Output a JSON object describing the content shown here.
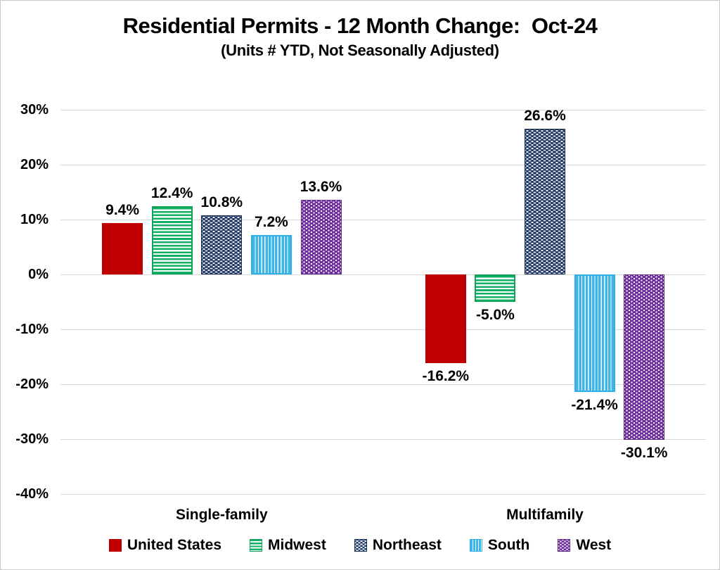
{
  "title": "Residential Permits - 12 Month Change:  Oct-24",
  "subtitle": "(Units # YTD, Not Seasonally Adjusted)",
  "chart_data": {
    "type": "bar",
    "categories": [
      "Single-family",
      "Multifamily"
    ],
    "series": [
      {
        "name": "United States",
        "values": [
          9.4,
          -16.2
        ],
        "labels": [
          "9.4%",
          "-16.2%"
        ],
        "color": "#C00000",
        "pattern": "solid"
      },
      {
        "name": "Midwest",
        "values": [
          12.4,
          -5.0
        ],
        "labels": [
          "12.4%",
          "-5.0%"
        ],
        "color": "#12B266",
        "pattern": "hstripe"
      },
      {
        "name": "Northeast",
        "values": [
          10.8,
          26.6
        ],
        "labels": [
          "10.8%",
          "26.6%"
        ],
        "color": "#1F3864",
        "pattern": "dash"
      },
      {
        "name": "South",
        "values": [
          7.2,
          -21.4
        ],
        "labels": [
          "7.2%",
          "-21.4%"
        ],
        "color": "#3CB6EA",
        "pattern": "vstripe"
      },
      {
        "name": "West",
        "values": [
          13.6,
          -30.1
        ],
        "labels": [
          "13.6%",
          "-30.1%"
        ],
        "color": "#7030A0",
        "pattern": "dot"
      }
    ],
    "y_ticks": [
      {
        "value": 30,
        "label": "30%"
      },
      {
        "value": 20,
        "label": "20%"
      },
      {
        "value": 10,
        "label": "10%"
      },
      {
        "value": 0,
        "label": "0%"
      },
      {
        "value": -10,
        "label": "-10%"
      },
      {
        "value": -20,
        "label": "-20%"
      },
      {
        "value": -30,
        "label": "-30%"
      },
      {
        "value": -40,
        "label": "-40%"
      }
    ],
    "ylim": [
      -40,
      30
    ],
    "grid": true,
    "gridline_color": "#D9D9D9",
    "legend_position": "bottom"
  }
}
